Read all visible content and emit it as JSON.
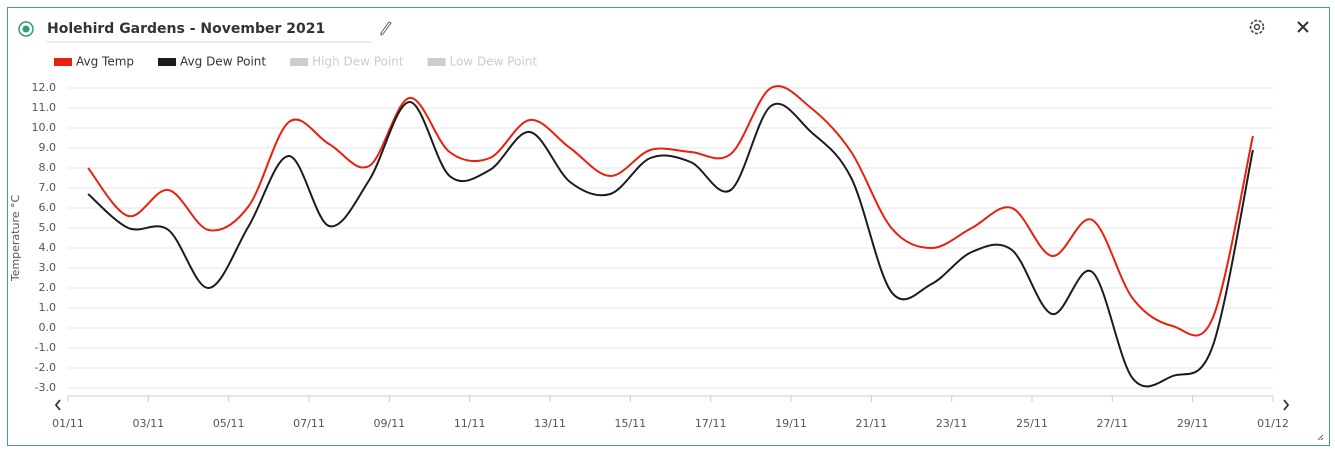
{
  "chart_data": {
    "type": "line",
    "title": "Holehird Gardens - November 2021",
    "y_label": "Temperature °C",
    "x": [
      0.5,
      1.5,
      2.5,
      3.5,
      4.5,
      5.5,
      6.5,
      7.5,
      8.5,
      9.5,
      10.5,
      11.5,
      12.5,
      13.5,
      14.5,
      15.5,
      16.5,
      17.5,
      18.5,
      19.5,
      20.5,
      21.5,
      22.5,
      23.5,
      24.5,
      25.5,
      26.5,
      27.5,
      28.5,
      29.5
    ],
    "series": [
      {
        "name": "Avg Temp",
        "color": "#e8200e",
        "values": [
          8.0,
          5.6,
          6.9,
          4.9,
          6.1,
          10.3,
          9.2,
          8.1,
          11.5,
          8.8,
          8.5,
          10.4,
          9.0,
          7.6,
          8.9,
          8.8,
          8.7,
          12.0,
          11.0,
          8.8,
          5.0,
          4.0,
          5.0,
          6.0,
          3.6,
          5.4,
          1.5,
          0.1,
          0.5,
          9.6
        ]
      },
      {
        "name": "Avg Dew Point",
        "color": "#1c1c1c",
        "values": [
          6.7,
          5.0,
          4.9,
          2.0,
          5.1,
          8.6,
          5.1,
          7.4,
          11.3,
          7.6,
          7.9,
          9.8,
          7.3,
          6.7,
          8.5,
          8.3,
          6.9,
          11.1,
          9.8,
          7.5,
          1.8,
          2.2,
          3.8,
          3.9,
          0.7,
          2.8,
          -2.5,
          -2.4,
          -0.9,
          8.9
        ]
      }
    ],
    "hidden_series": [
      {
        "name": "High Dew Point",
        "color": "#cccccc"
      },
      {
        "name": "Low Dew Point",
        "color": "#cccccc"
      }
    ],
    "xlim": [
      0,
      30
    ],
    "xticks": [
      {
        "value": 0,
        "label": "01/11"
      },
      {
        "value": 2,
        "label": "03/11"
      },
      {
        "value": 4,
        "label": "05/11"
      },
      {
        "value": 6,
        "label": "07/11"
      },
      {
        "value": 8,
        "label": "09/11"
      },
      {
        "value": 10,
        "label": "11/11"
      },
      {
        "value": 12,
        "label": "13/11"
      },
      {
        "value": 14,
        "label": "15/11"
      },
      {
        "value": 16,
        "label": "17/11"
      },
      {
        "value": 18,
        "label": "19/11"
      },
      {
        "value": 20,
        "label": "21/11"
      },
      {
        "value": 22,
        "label": "23/11"
      },
      {
        "value": 24,
        "label": "25/11"
      },
      {
        "value": 26,
        "label": "27/11"
      },
      {
        "value": 28,
        "label": "29/11"
      },
      {
        "value": 30,
        "label": "01/12"
      }
    ],
    "ylim": [
      -3,
      12
    ],
    "yticks": [
      {
        "value": 12,
        "label": "12.0"
      },
      {
        "value": 11,
        "label": "11.0"
      },
      {
        "value": 10,
        "label": "10.0"
      },
      {
        "value": 9,
        "label": "9.0"
      },
      {
        "value": 8,
        "label": "8.0"
      },
      {
        "value": 7,
        "label": "7.0"
      },
      {
        "value": 6,
        "label": "6.0"
      },
      {
        "value": 5,
        "label": "5.0"
      },
      {
        "value": 4,
        "label": "4.0"
      },
      {
        "value": 3,
        "label": "3.0"
      },
      {
        "value": 2,
        "label": "2.0"
      },
      {
        "value": 1,
        "label": "1.0"
      },
      {
        "value": 0,
        "label": "0.0"
      },
      {
        "value": -1,
        "label": "-1.0"
      },
      {
        "value": -2,
        "label": "-2.0"
      },
      {
        "value": -3,
        "label": "-3.0"
      }
    ],
    "grid": true
  }
}
